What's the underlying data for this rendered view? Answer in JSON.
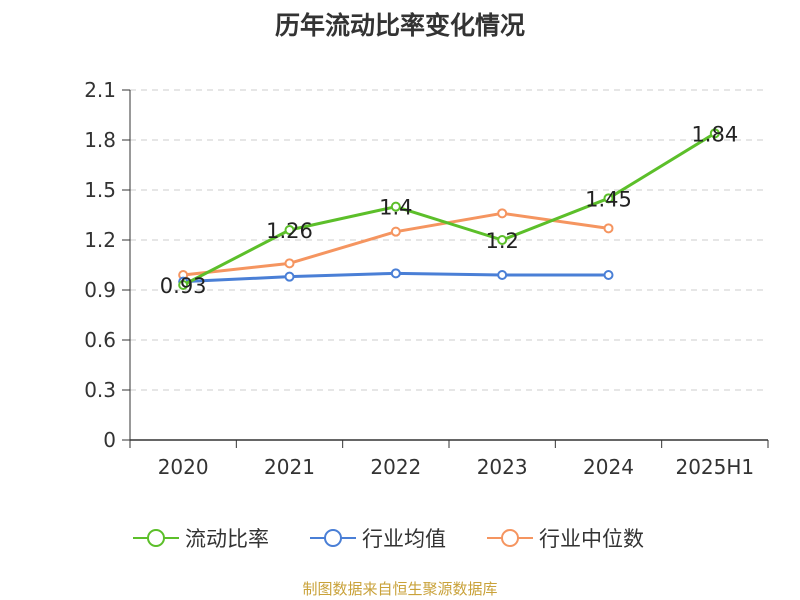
{
  "title": "历年流动比率变化情况",
  "source_text": "制图数据来自恒生聚源数据库",
  "colors": {
    "series_current_ratio": "#5cbf2a",
    "series_industry_avg": "#4a7fd6",
    "series_industry_median": "#f59560",
    "grid": "#cccccc",
    "axis": "#333333",
    "source": "#c9a23a"
  },
  "chart_data": {
    "type": "line",
    "categories": [
      "2020",
      "2021",
      "2022",
      "2023",
      "2024",
      "2025H1"
    ],
    "ylim": [
      0,
      2.1
    ],
    "yticks": [
      "0",
      "0.3",
      "0.6",
      "0.9",
      "1.2",
      "1.5",
      "1.8",
      "2.1"
    ],
    "yticks_values": [
      0,
      0.3,
      0.6,
      0.9,
      1.2,
      1.5,
      1.8,
      2.1
    ],
    "grid": true,
    "legend": "bottom",
    "series": [
      {
        "name": "流动比率",
        "values": [
          0.93,
          1.26,
          1.4,
          1.2,
          1.45,
          1.84
        ],
        "labels": [
          "0.93",
          "1.26",
          "1.4",
          "1.2",
          "1.45",
          "1.84"
        ],
        "color": "#5cbf2a"
      },
      {
        "name": "行业均值",
        "values": [
          0.95,
          0.98,
          1.0,
          0.99,
          0.99,
          null
        ],
        "color": "#4a7fd6"
      },
      {
        "name": "行业中位数",
        "values": [
          0.99,
          1.06,
          1.25,
          1.36,
          1.27,
          null
        ],
        "color": "#f59560"
      }
    ]
  }
}
